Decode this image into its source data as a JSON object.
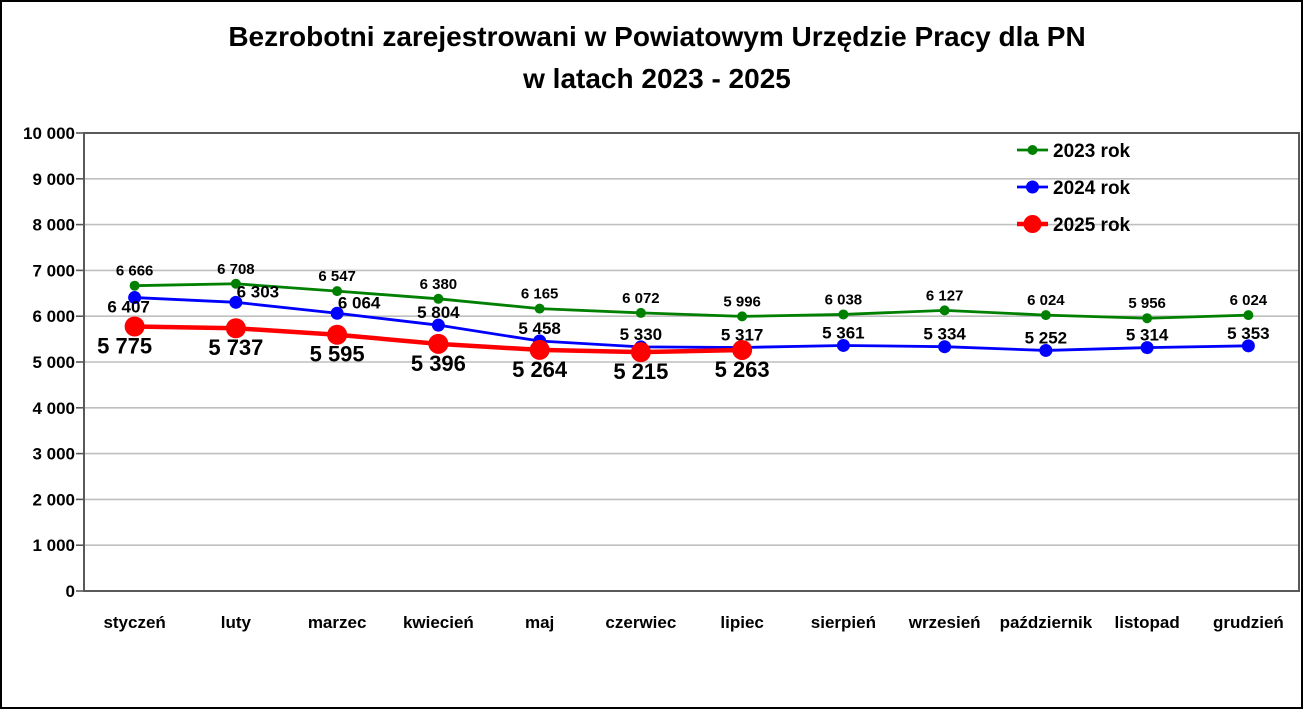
{
  "window": {
    "background": "#ffffff",
    "frame_color": "#000000"
  },
  "chart_data": {
    "type": "line",
    "title_line1": "Bezrobotni zarejestrowani w Powiatowym Urzędzie Pracy dla PN",
    "title_line2": "w latach 2023 - 2025",
    "categories": [
      "styczeń",
      "luty",
      "marzec",
      "kwiecień",
      "maj",
      "czerwiec",
      "lipiec",
      "sierpień",
      "wrzesień",
      "październik",
      "listopad",
      "grudzień"
    ],
    "y_axis": {
      "min": 0,
      "max": 10000,
      "step": 1000,
      "tick_labels": [
        "0",
        "1 000",
        "2 000",
        "3 000",
        "4 000",
        "5 000",
        "6 000",
        "7 000",
        "8 000",
        "9 000",
        "10 000"
      ]
    },
    "grid": "horizontal-only",
    "legend_position": "top-right-inside",
    "colors": {
      "grid_line": "#bfbfbf",
      "axis_border": "#595959",
      "text": "#000000",
      "series_2023": "#008000",
      "series_2024": "#0000ff",
      "series_2025": "#ff0000"
    },
    "series": [
      {
        "name": "2023 rok",
        "color": "#008000",
        "values": [
          6666,
          6708,
          6547,
          6380,
          6165,
          6072,
          5996,
          6038,
          6127,
          6024,
          5956,
          6024
        ],
        "labels": [
          "6 666",
          "6 708",
          "6 547",
          "6 380",
          "6 165",
          "6 072",
          "5 996",
          "6 038",
          "6 127",
          "6 024",
          "5 956",
          "6 024"
        ]
      },
      {
        "name": "2024 rok",
        "color": "#0000ff",
        "values": [
          6407,
          6303,
          6064,
          5804,
          5458,
          5330,
          5317,
          5361,
          5334,
          5252,
          5314,
          5353
        ],
        "labels": [
          "6 407",
          "6 303",
          "6 064",
          "5 804",
          "5 458",
          "5 330",
          "5 317",
          "5 361",
          "5 334",
          "5 252",
          "5 314",
          "5 353"
        ]
      },
      {
        "name": "2025 rok",
        "color": "#ff0000",
        "values": [
          5775,
          5737,
          5595,
          5396,
          5264,
          5215,
          5263
        ],
        "labels": [
          "5 775",
          "5 737",
          "5 595",
          "5 396",
          "5 264",
          "5 215",
          "5 263"
        ]
      }
    ]
  }
}
